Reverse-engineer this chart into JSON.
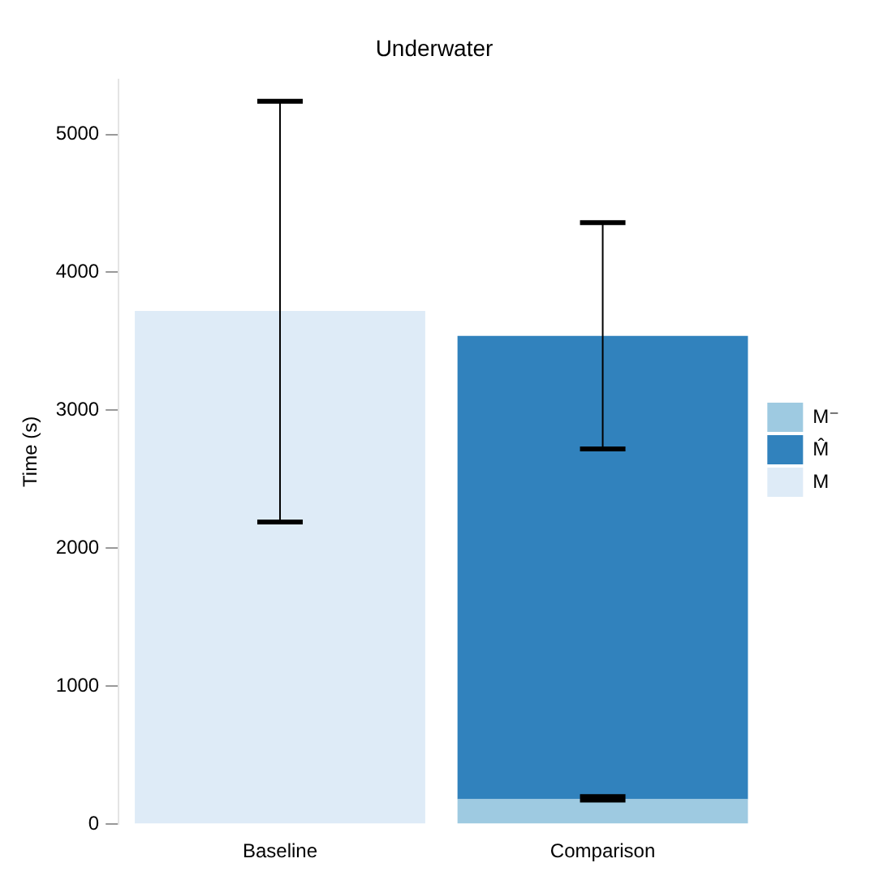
{
  "chart_data": {
    "type": "bar",
    "title": "Underwater",
    "ylabel": "Time (s)",
    "categories": [
      "Baseline",
      "Comparison"
    ],
    "stacked": true,
    "legend": "right",
    "grid": false,
    "ylim": [
      0,
      5400
    ],
    "yticks": [
      0,
      1000,
      2000,
      3000,
      4000,
      5000
    ],
    "series": [
      {
        "name": "M⁻",
        "color": "#9ecae1",
        "values": [
          null,
          180
        ],
        "errors": [
          null,
          [
            175,
            200
          ]
        ]
      },
      {
        "name": "M̂",
        "color": "#3182bd",
        "values": [
          null,
          3360
        ],
        "errors": [
          null,
          [
            2720,
            4360
          ]
        ]
      },
      {
        "name": "M",
        "color": "#deebf7",
        "values": [
          3720,
          null
        ],
        "errors": [
          [
            2190,
            5240
          ],
          null
        ]
      }
    ]
  }
}
